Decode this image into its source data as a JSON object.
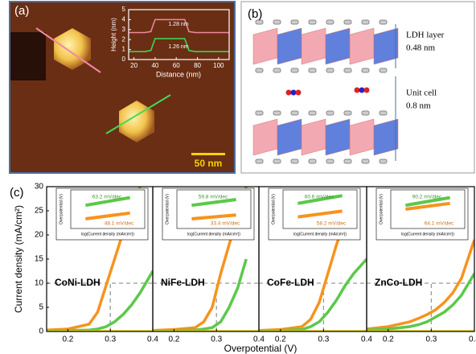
{
  "labels": {
    "a": "(a)",
    "b": "(b)",
    "c": "(c)"
  },
  "afm": {
    "scale_bar": "50 nm"
  },
  "structure": {
    "ldh_layer": "LDH layer",
    "ldh_thickness": "0.48 nm",
    "unit_cell": "Unit cell",
    "unit_cell_size": "0.8 nm"
  },
  "chart_data": [
    {
      "type": "line",
      "xlabel": "Distance (nm)",
      "ylabel": "Height (nm)",
      "x": [
        15,
        30,
        36,
        40,
        68,
        72,
        78,
        110
      ],
      "series": [
        {
          "color": "#f08aa0",
          "values": [
            2.7,
            2.7,
            2.8,
            4.0,
            4.0,
            2.8,
            2.7,
            2.7
          ]
        },
        {
          "color": "#3ddc5a",
          "values": [
            0.8,
            0.8,
            0.9,
            2.1,
            2.1,
            0.9,
            0.8,
            0.8
          ]
        }
      ],
      "annotations": [
        "1.28 nm",
        "1.26 nm"
      ],
      "xlim": [
        15,
        110
      ],
      "xticks": [
        20,
        40,
        60,
        80,
        100
      ],
      "ylim": [
        0,
        5
      ],
      "yticks": [
        0,
        1,
        2,
        3,
        4,
        5
      ]
    },
    {
      "type": "line",
      "title": "CoNi-LDH",
      "xlabel": "Overpotential (V)",
      "ylabel": "Current density (mA/cm²)",
      "x": [
        0.15,
        0.2,
        0.25,
        0.27,
        0.29,
        0.31,
        0.33,
        0.35,
        0.37,
        0.4
      ],
      "series": [
        {
          "color": "#f7931e",
          "values": [
            0.3,
            0.5,
            1.5,
            4,
            9.5,
            15,
            20.5,
            25.5,
            30,
            null
          ]
        },
        {
          "color": "#5cc84a",
          "values": [
            0.1,
            0.2,
            0.3,
            0.5,
            1,
            2,
            3.5,
            5.5,
            8,
            12.5
          ]
        },
        {
          "color": "#e8d21a",
          "values": [
            0,
            0,
            0,
            0,
            0,
            0,
            0,
            0,
            0,
            0
          ]
        }
      ],
      "ref_y": 10,
      "ref_x": 0.3,
      "xlim": [
        0.15,
        0.4
      ],
      "xticks": [
        0.2,
        0.3,
        0.4
      ],
      "ylim": [
        0,
        30
      ],
      "yticks": [
        0,
        5,
        10,
        15,
        20,
        25,
        30
      ],
      "inset": {
        "xlabel": "log(Current density (mA/cm²))",
        "ylabel": "Overpotential (V)",
        "annotations": [
          "63.2 mV/dec",
          "48.1 mV/dec"
        ],
        "x": [
          0.4,
          1.6
        ],
        "series": [
          {
            "color": "#5cc84a",
            "values": [
              0.27,
              0.31
            ]
          },
          {
            "color": "#f7931e",
            "values": [
              0.2,
              0.23
            ]
          }
        ],
        "xlim": [
          0,
          2
        ],
        "ylim": [
          0.15,
          0.35
        ]
      }
    },
    {
      "type": "line",
      "title": "NiFe-LDH",
      "x": [
        0.15,
        0.2,
        0.25,
        0.27,
        0.29,
        0.31,
        0.33,
        0.35,
        0.37,
        0.4
      ],
      "series": [
        {
          "color": "#f7931e",
          "values": [
            0.2,
            0.4,
            0.8,
            2,
            5,
            12,
            18,
            24,
            30,
            null
          ]
        },
        {
          "color": "#5cc84a",
          "values": [
            0.1,
            0.2,
            0.3,
            0.5,
            0.8,
            2,
            5,
            9,
            15,
            null
          ]
        },
        {
          "color": "#e8d21a",
          "values": [
            0,
            0,
            0,
            0,
            0,
            0,
            0,
            0,
            0,
            0
          ]
        }
      ],
      "ref_y": 10,
      "ref_x": 0.3,
      "xlim": [
        0.15,
        0.4
      ],
      "xticks": [
        0.2,
        0.3,
        0.4
      ],
      "ylim": [
        0,
        30
      ],
      "inset": {
        "xlabel": "log(Current density (mA/cm²))",
        "ylabel": "Overpotential (V)",
        "annotations": [
          "59.8 mV/dec",
          "33.4 mV/dec"
        ],
        "x": [
          0.4,
          1.6
        ],
        "series": [
          {
            "color": "#5cc84a",
            "values": [
              0.27,
              0.3
            ]
          },
          {
            "color": "#f7931e",
            "values": [
              0.2,
              0.22
            ]
          }
        ],
        "xlim": [
          0,
          2
        ],
        "ylim": [
          0.15,
          0.35
        ]
      }
    },
    {
      "type": "line",
      "title": "CoFe-LDH",
      "x": [
        0.15,
        0.2,
        0.25,
        0.27,
        0.29,
        0.31,
        0.33,
        0.35,
        0.37,
        0.4
      ],
      "series": [
        {
          "color": "#f7931e",
          "values": [
            0.2,
            0.4,
            1,
            2.5,
            6,
            12,
            18,
            23,
            28,
            null
          ]
        },
        {
          "color": "#5cc84a",
          "values": [
            0.1,
            0.2,
            0.4,
            1,
            2,
            4,
            6.5,
            9.5,
            12,
            15
          ]
        },
        {
          "color": "#e8d21a",
          "values": [
            0,
            0,
            0,
            0,
            0,
            0,
            0,
            0,
            0,
            0
          ]
        }
      ],
      "ref_y": 10,
      "ref_x": 0.3,
      "xlim": [
        0.15,
        0.4
      ],
      "xticks": [
        0.2,
        0.3,
        0.4
      ],
      "ylim": [
        0,
        30
      ],
      "inset": {
        "xlabel": "log(Current density (mA/cm²))",
        "ylabel": "Overpotential (V)",
        "annotations": [
          "60.6 mV/dec",
          "58.2 mV/dec"
        ],
        "x": [
          0.4,
          1.6
        ],
        "series": [
          {
            "color": "#5cc84a",
            "values": [
              0.28,
              0.32
            ]
          },
          {
            "color": "#f7931e",
            "values": [
              0.21,
              0.24
            ]
          }
        ],
        "xlim": [
          0,
          2
        ],
        "ylim": [
          0.15,
          0.35
        ]
      }
    },
    {
      "type": "line",
      "title": "ZnCo-LDH",
      "x": [
        0.15,
        0.2,
        0.25,
        0.27,
        0.29,
        0.31,
        0.33,
        0.35,
        0.37,
        0.4
      ],
      "series": [
        {
          "color": "#f7931e",
          "values": [
            0.5,
            1,
            2,
            2.7,
            3.5,
            4.5,
            6,
            8,
            11,
            19
          ]
        },
        {
          "color": "#5cc84a",
          "values": [
            0.3,
            0.5,
            1,
            1.4,
            2,
            3,
            4,
            5.5,
            7.5,
            12
          ]
        },
        {
          "color": "#e8d21a",
          "values": [
            0,
            0,
            0,
            0,
            0,
            0,
            0,
            0,
            0,
            0
          ]
        }
      ],
      "ref_y": 10,
      "ref_x": 0.3,
      "xlim": [
        0.15,
        0.4
      ],
      "xticks": [
        0.2,
        0.3,
        0.4
      ],
      "ylim": [
        0,
        30
      ],
      "inset": {
        "xlabel": "log(Current density (mA/cm²))",
        "ylabel": "Overpotential (V)",
        "annotations": [
          "90.2 mV/dec",
          "64.1 mV/dec"
        ],
        "x": [
          0.4,
          1.6
        ],
        "series": [
          {
            "color": "#5cc84a",
            "values": [
              0.27,
              0.31
            ]
          },
          {
            "color": "#f7931e",
            "values": [
              0.25,
              0.28
            ]
          }
        ],
        "xlim": [
          0,
          2
        ],
        "ylim": [
          0.15,
          0.35
        ]
      }
    }
  ]
}
